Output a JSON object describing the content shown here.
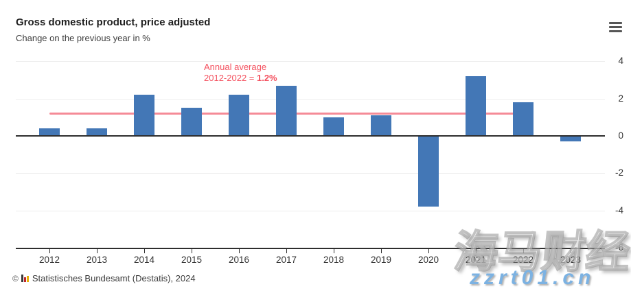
{
  "chart_data": {
    "type": "bar",
    "title": "Gross domestic product, price adjusted",
    "subtitle": "Change on the previous year in %",
    "categories": [
      "2012",
      "2013",
      "2014",
      "2015",
      "2016",
      "2017",
      "2018",
      "2019",
      "2020",
      "2021",
      "2022",
      "2023"
    ],
    "values": [
      0.4,
      0.4,
      2.2,
      1.5,
      2.2,
      2.7,
      1.0,
      1.1,
      -3.8,
      3.2,
      1.8,
      -0.3
    ],
    "ylim": [
      -6,
      4
    ],
    "yticks": [
      4,
      2,
      0,
      -2,
      -4,
      -6
    ],
    "grid": true,
    "legend_position": "none",
    "y_axis_side": "right",
    "bar_color": "#4377b6",
    "annotation": {
      "line1": "Annual average",
      "line2_prefix": "2012-2022 = ",
      "line2_value": "1.2%",
      "color": "#f4515f"
    },
    "average_line": {
      "value": 1.2,
      "from_category": "2012",
      "to_category": "2022",
      "color": "#f58b97"
    }
  },
  "menu": {
    "icon": "hamburger-menu-icon"
  },
  "footer": {
    "copyright_symbol": "©",
    "logo_icon": "destatis-bars-logo-icon",
    "source_text": "Statistisches Bundesamt (Destatis), 2024"
  },
  "watermark": {
    "text_cjk": "海马财经",
    "text_url": "zzrt01.cn",
    "url_color": "#7cb2e2"
  }
}
